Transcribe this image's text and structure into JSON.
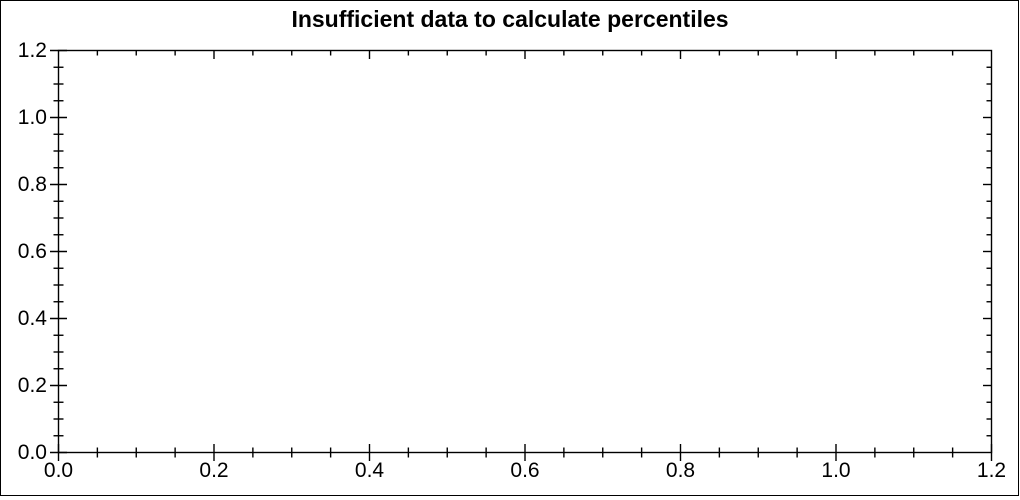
{
  "window": {
    "background": "#ffffff",
    "border_color": "#000000"
  },
  "chart_data": {
    "type": "scatter",
    "title": "Insufficient data to calculate percentiles",
    "series": [],
    "points": [],
    "grid": false,
    "legend": false,
    "plot_background": "#ffffff",
    "axis_color": "#000000",
    "text_color": "#000000",
    "xlabel": "",
    "ylabel": "",
    "xlim": [
      0,
      1.2
    ],
    "ylim": [
      0,
      1.2
    ],
    "x_axis": {
      "min": 0,
      "max": 1.2,
      "major_step": 0.2,
      "minor_step": 0.05,
      "major_tick_values": [
        0,
        0.2,
        0.4,
        0.6,
        0.8,
        1.0,
        1.2
      ],
      "tick_labels": [
        "0.0",
        "0.2",
        "0.4",
        "0.6",
        "0.8",
        "1.0",
        "1.2"
      ]
    },
    "y_axis": {
      "min": 0,
      "max": 1.2,
      "major_step": 0.2,
      "minor_step": 0.05,
      "major_tick_values": [
        0,
        0.2,
        0.4,
        0.6,
        0.8,
        1.0,
        1.2
      ],
      "tick_labels": [
        "0.0",
        "0.2",
        "0.4",
        "0.6",
        "0.8",
        "1.0",
        "1.2"
      ]
    }
  }
}
